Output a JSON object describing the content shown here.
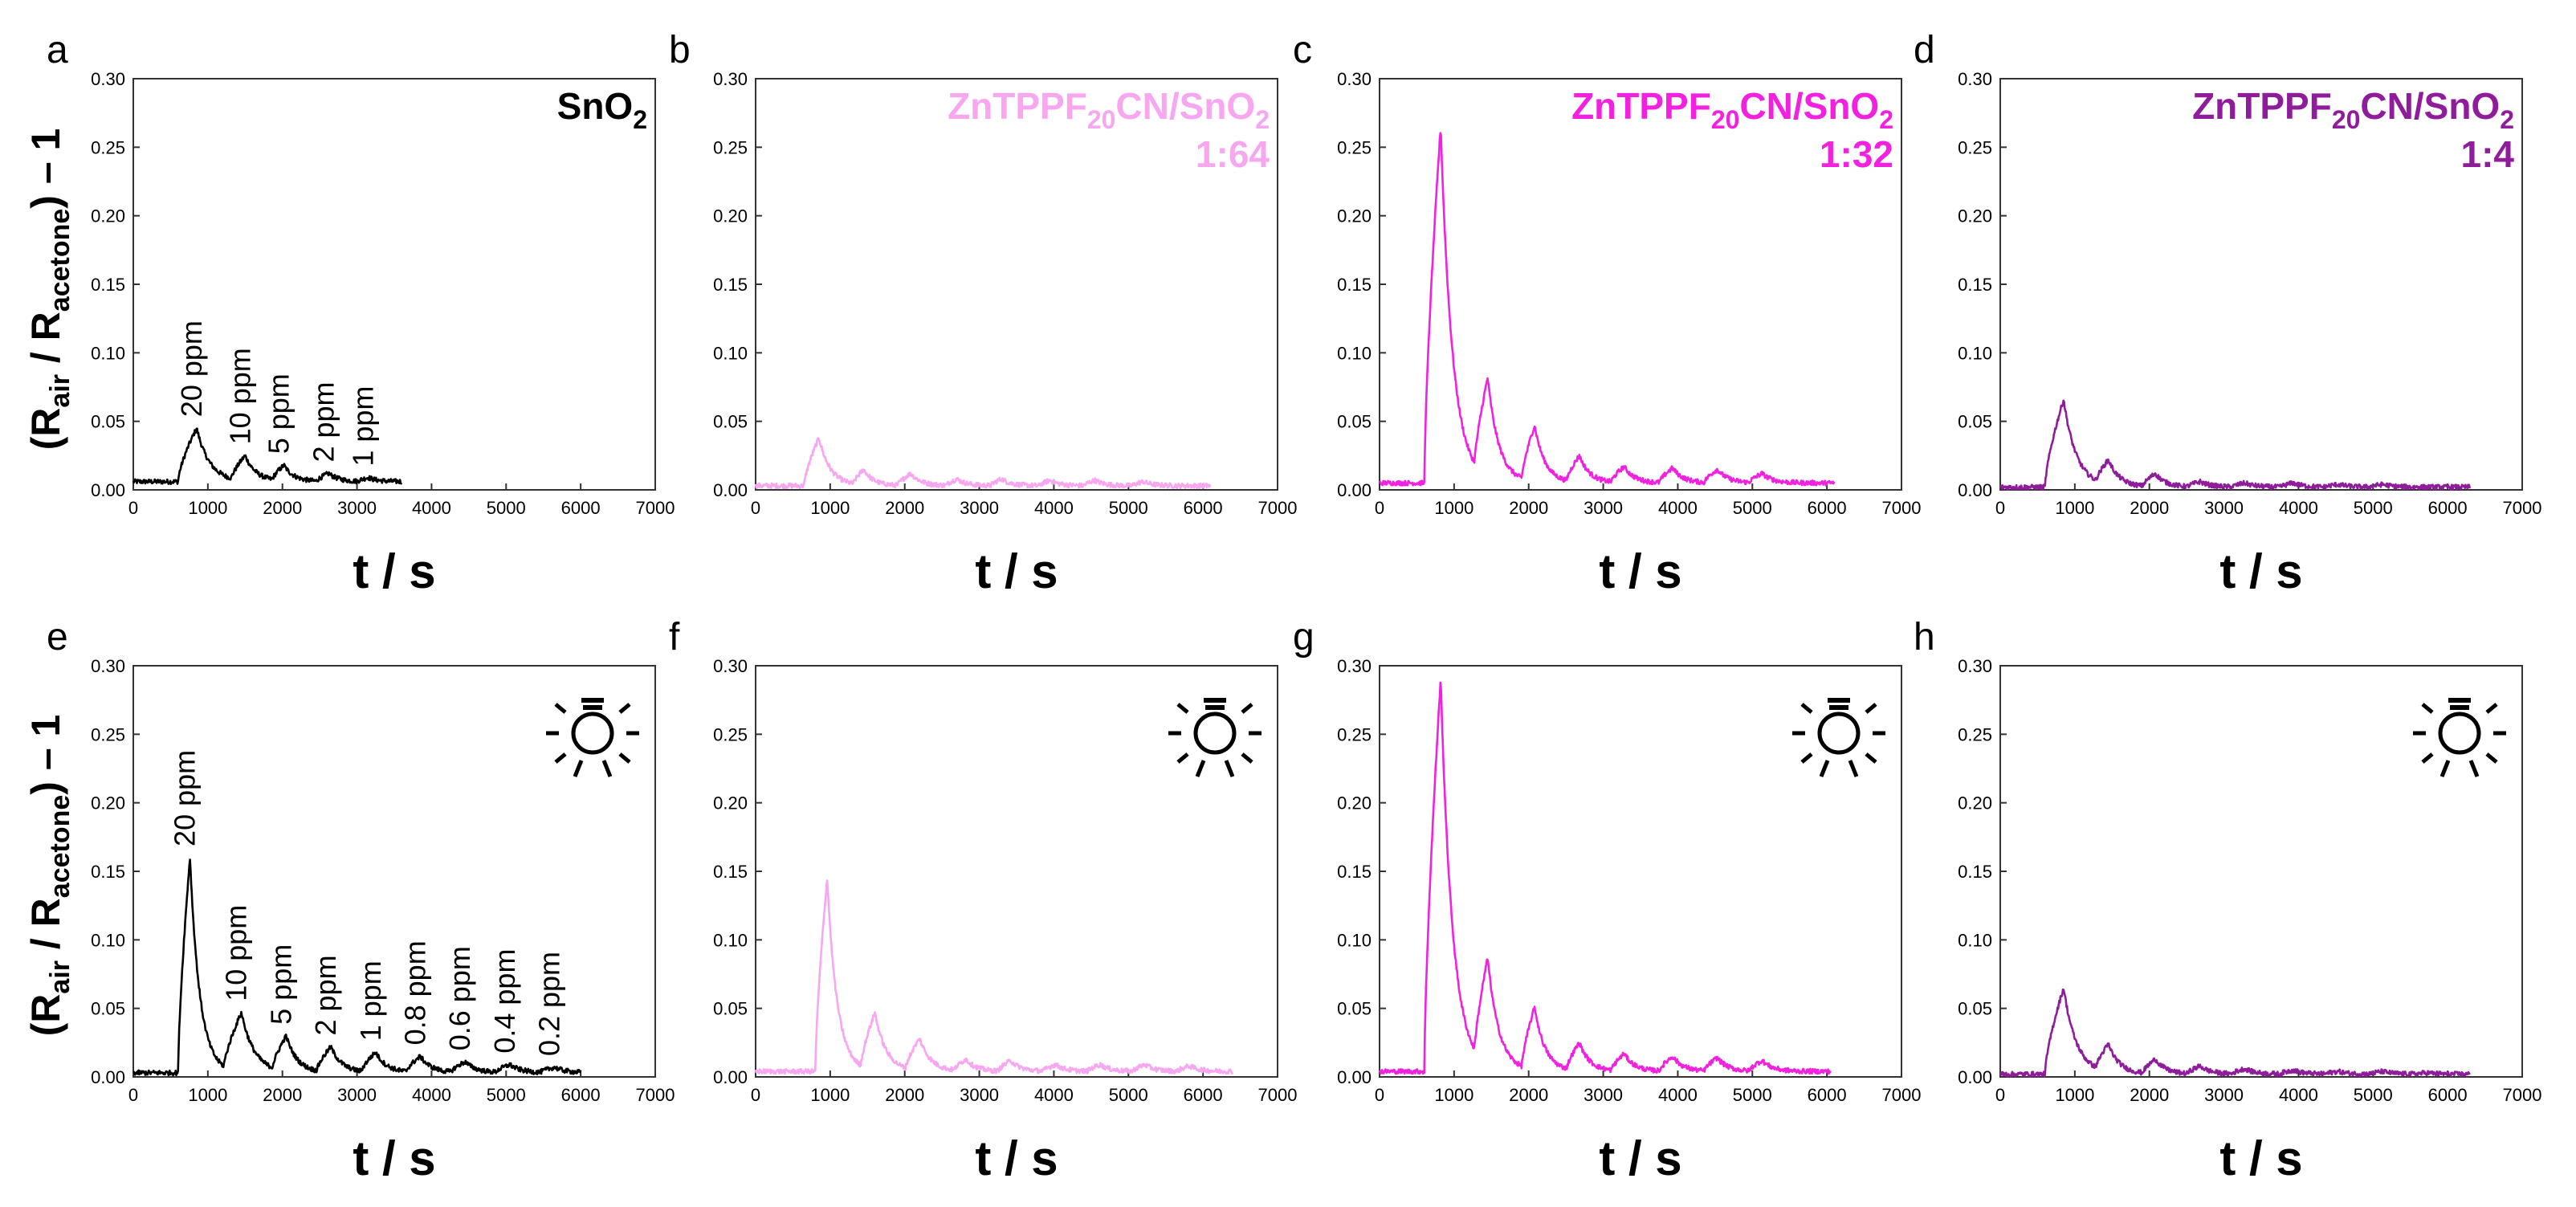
{
  "figure": {
    "y_axis_title": {
      "open": "(R",
      "air": "air",
      "slash": " / R",
      "acetone": "acetone",
      "close": ") – 1"
    },
    "x_axis_title": "t / s",
    "x_ticks": [
      0,
      1000,
      2000,
      3000,
      4000,
      5000,
      6000,
      7000
    ],
    "y_ticks": [
      "0.00",
      "0.05",
      "0.10",
      "0.15",
      "0.20",
      "0.25",
      "0.30"
    ]
  },
  "chart_data": [
    {
      "panel": "a",
      "type": "line",
      "color": "#000000",
      "light": false,
      "title": {
        "main": "SnO",
        "sub": "2",
        "ratio": ""
      },
      "xlim": [
        0,
        7000
      ],
      "ylim": [
        0,
        0.3
      ],
      "x_end": 3600,
      "xlabel": "t / s",
      "ylabel": "(Rair / Racetone) – 1",
      "pulses": [
        {
          "start": 600,
          "peak_time": 850,
          "peak": 0.045
        },
        {
          "start": 1300,
          "peak_time": 1500,
          "peak": 0.025
        },
        {
          "start": 1850,
          "peak_time": 2020,
          "peak": 0.018
        },
        {
          "start": 2450,
          "peak_time": 2620,
          "peak": 0.012
        },
        {
          "start": 3000,
          "peak_time": 3150,
          "peak": 0.009
        }
      ],
      "baseline": 0.006,
      "annotations": [
        "20 ppm",
        "10 ppm",
        "5 ppm",
        "2 ppm",
        "1 ppm"
      ]
    },
    {
      "panel": "b",
      "type": "line",
      "color": "#f7a6f0",
      "light": false,
      "title": {
        "main": "ZnTPPF",
        "sub": "20",
        "main2": "CN/SnO",
        "sub2": "2",
        "ratio": "1:64"
      },
      "xlim": [
        0,
        7000
      ],
      "ylim": [
        0,
        0.3
      ],
      "x_end": 6100,
      "xlabel": "t / s",
      "ylabel": "(Rair / Racetone) – 1",
      "pulses": [
        {
          "start": 650,
          "peak_time": 850,
          "peak": 0.038
        },
        {
          "start": 1300,
          "peak_time": 1450,
          "peak": 0.015
        },
        {
          "start": 1900,
          "peak_time": 2080,
          "peak": 0.012
        },
        {
          "start": 2550,
          "peak_time": 2700,
          "peak": 0.008
        },
        {
          "start": 3150,
          "peak_time": 3300,
          "peak": 0.008
        },
        {
          "start": 3800,
          "peak_time": 3950,
          "peak": 0.007
        },
        {
          "start": 4400,
          "peak_time": 4550,
          "peak": 0.007
        },
        {
          "start": 5050,
          "peak_time": 5200,
          "peak": 0.006
        }
      ],
      "baseline": 0.003,
      "annotations": []
    },
    {
      "panel": "c",
      "type": "line",
      "color": "#f221e0",
      "light": false,
      "title": {
        "main": "ZnTPPF",
        "sub": "20",
        "main2": "CN/SnO",
        "sub2": "2",
        "ratio": "1:32"
      },
      "xlim": [
        0,
        7000
      ],
      "ylim": [
        0,
        0.3
      ],
      "x_end": 6100,
      "xlabel": "t / s",
      "ylabel": "(Rair / Racetone) – 1",
      "pulses": [
        {
          "start": 600,
          "peak_time": 820,
          "peak": 0.265
        },
        {
          "start": 1250,
          "peak_time": 1450,
          "peak": 0.082
        },
        {
          "start": 1900,
          "peak_time": 2080,
          "peak": 0.047
        },
        {
          "start": 2500,
          "peak_time": 2680,
          "peak": 0.025
        },
        {
          "start": 3100,
          "peak_time": 3280,
          "peak": 0.017
        },
        {
          "start": 3750,
          "peak_time": 3930,
          "peak": 0.016
        },
        {
          "start": 4350,
          "peak_time": 4530,
          "peak": 0.015
        },
        {
          "start": 4950,
          "peak_time": 5130,
          "peak": 0.012
        }
      ],
      "baseline": 0.005,
      "annotations": []
    },
    {
      "panel": "d",
      "type": "line",
      "color": "#8f1c9a",
      "light": false,
      "title": {
        "main": "ZnTPPF",
        "sub": "20",
        "main2": "CN/SnO",
        "sub2": "2",
        "ratio": "1:4"
      },
      "xlim": [
        0,
        7000
      ],
      "ylim": [
        0,
        0.3
      ],
      "x_end": 6300,
      "xlabel": "t / s",
      "ylabel": "(Rair / Racetone) – 1",
      "pulses": [
        {
          "start": 600,
          "peak_time": 850,
          "peak": 0.066
        },
        {
          "start": 1250,
          "peak_time": 1450,
          "peak": 0.022
        },
        {
          "start": 1900,
          "peak_time": 2080,
          "peak": 0.012
        },
        {
          "start": 2500,
          "peak_time": 2680,
          "peak": 0.006
        },
        {
          "start": 3100,
          "peak_time": 3280,
          "peak": 0.005
        },
        {
          "start": 3750,
          "peak_time": 3930,
          "peak": 0.005
        },
        {
          "start": 4350,
          "peak_time": 4530,
          "peak": 0.004
        },
        {
          "start": 4950,
          "peak_time": 5130,
          "peak": 0.004
        }
      ],
      "baseline": 0.002,
      "annotations": []
    },
    {
      "panel": "e",
      "type": "line",
      "color": "#000000",
      "light": true,
      "title": {
        "main": "",
        "ratio": ""
      },
      "xlim": [
        0,
        7000
      ],
      "ylim": [
        0,
        0.3
      ],
      "x_end": 6000,
      "xlabel": "t / s",
      "ylabel": "(Rair / Racetone) – 1",
      "pulses": [
        {
          "start": 600,
          "peak_time": 760,
          "peak": 0.16
        },
        {
          "start": 1200,
          "peak_time": 1450,
          "peak": 0.047
        },
        {
          "start": 1850,
          "peak_time": 2050,
          "peak": 0.03
        },
        {
          "start": 2450,
          "peak_time": 2650,
          "peak": 0.022
        },
        {
          "start": 3050,
          "peak_time": 3250,
          "peak": 0.018
        },
        {
          "start": 3650,
          "peak_time": 3850,
          "peak": 0.015
        },
        {
          "start": 4250,
          "peak_time": 4450,
          "peak": 0.011
        },
        {
          "start": 4850,
          "peak_time": 5050,
          "peak": 0.009
        },
        {
          "start": 5450,
          "peak_time": 5650,
          "peak": 0.007
        }
      ],
      "baseline": 0.003,
      "annotations": [
        "20 ppm",
        "10 ppm",
        "5 ppm",
        "2 ppm",
        "1 ppm",
        "0.8 ppm",
        "0.6 ppm",
        "0.4 ppm",
        "0.2 ppm"
      ]
    },
    {
      "panel": "f",
      "type": "line",
      "color": "#f7a6f0",
      "light": true,
      "title": {
        "main": "",
        "ratio": ""
      },
      "xlim": [
        0,
        7000
      ],
      "ylim": [
        0,
        0.3
      ],
      "x_end": 6400,
      "xlabel": "t / s",
      "ylabel": "(Rair / Racetone) – 1",
      "pulses": [
        {
          "start": 800,
          "peak_time": 960,
          "peak": 0.145
        },
        {
          "start": 1400,
          "peak_time": 1600,
          "peak": 0.047
        },
        {
          "start": 2000,
          "peak_time": 2200,
          "peak": 0.028
        },
        {
          "start": 2650,
          "peak_time": 2820,
          "peak": 0.013
        },
        {
          "start": 3250,
          "peak_time": 3420,
          "peak": 0.012
        },
        {
          "start": 3850,
          "peak_time": 4020,
          "peak": 0.009
        },
        {
          "start": 4450,
          "peak_time": 4620,
          "peak": 0.009
        },
        {
          "start": 5050,
          "peak_time": 5220,
          "peak": 0.009
        },
        {
          "start": 5650,
          "peak_time": 5820,
          "peak": 0.008
        }
      ],
      "baseline": 0.004,
      "annotations": []
    },
    {
      "panel": "g",
      "type": "line",
      "color": "#f221e0",
      "light": true,
      "title": {
        "main": "",
        "ratio": ""
      },
      "xlim": [
        0,
        7000
      ],
      "ylim": [
        0,
        0.3
      ],
      "x_end": 6050,
      "xlabel": "t / s",
      "ylabel": "(Rair / Racetone) – 1",
      "pulses": [
        {
          "start": 600,
          "peak_time": 820,
          "peak": 0.29
        },
        {
          "start": 1250,
          "peak_time": 1450,
          "peak": 0.087
        },
        {
          "start": 1900,
          "peak_time": 2080,
          "peak": 0.051
        },
        {
          "start": 2500,
          "peak_time": 2680,
          "peak": 0.025
        },
        {
          "start": 3100,
          "peak_time": 3280,
          "peak": 0.017
        },
        {
          "start": 3750,
          "peak_time": 3930,
          "peak": 0.015
        },
        {
          "start": 4350,
          "peak_time": 4530,
          "peak": 0.014
        },
        {
          "start": 4950,
          "peak_time": 5130,
          "peak": 0.012
        }
      ],
      "baseline": 0.004,
      "annotations": []
    },
    {
      "panel": "h",
      "type": "line",
      "color": "#8f1c9a",
      "light": true,
      "title": {
        "main": "",
        "ratio": ""
      },
      "xlim": [
        0,
        7000
      ],
      "ylim": [
        0,
        0.3
      ],
      "x_end": 6300,
      "xlabel": "t / s",
      "ylabel": "(Rair / Racetone) – 1",
      "pulses": [
        {
          "start": 600,
          "peak_time": 850,
          "peak": 0.065
        },
        {
          "start": 1250,
          "peak_time": 1450,
          "peak": 0.024
        },
        {
          "start": 1900,
          "peak_time": 2080,
          "peak": 0.013
        },
        {
          "start": 2500,
          "peak_time": 2680,
          "peak": 0.008
        },
        {
          "start": 3100,
          "peak_time": 3280,
          "peak": 0.006
        },
        {
          "start": 3750,
          "peak_time": 3930,
          "peak": 0.005
        },
        {
          "start": 4350,
          "peak_time": 4530,
          "peak": 0.004
        },
        {
          "start": 4950,
          "peak_time": 5130,
          "peak": 0.004
        },
        {
          "start": 5550,
          "peak_time": 5730,
          "peak": 0.003
        }
      ],
      "baseline": 0.002,
      "annotations": []
    }
  ]
}
